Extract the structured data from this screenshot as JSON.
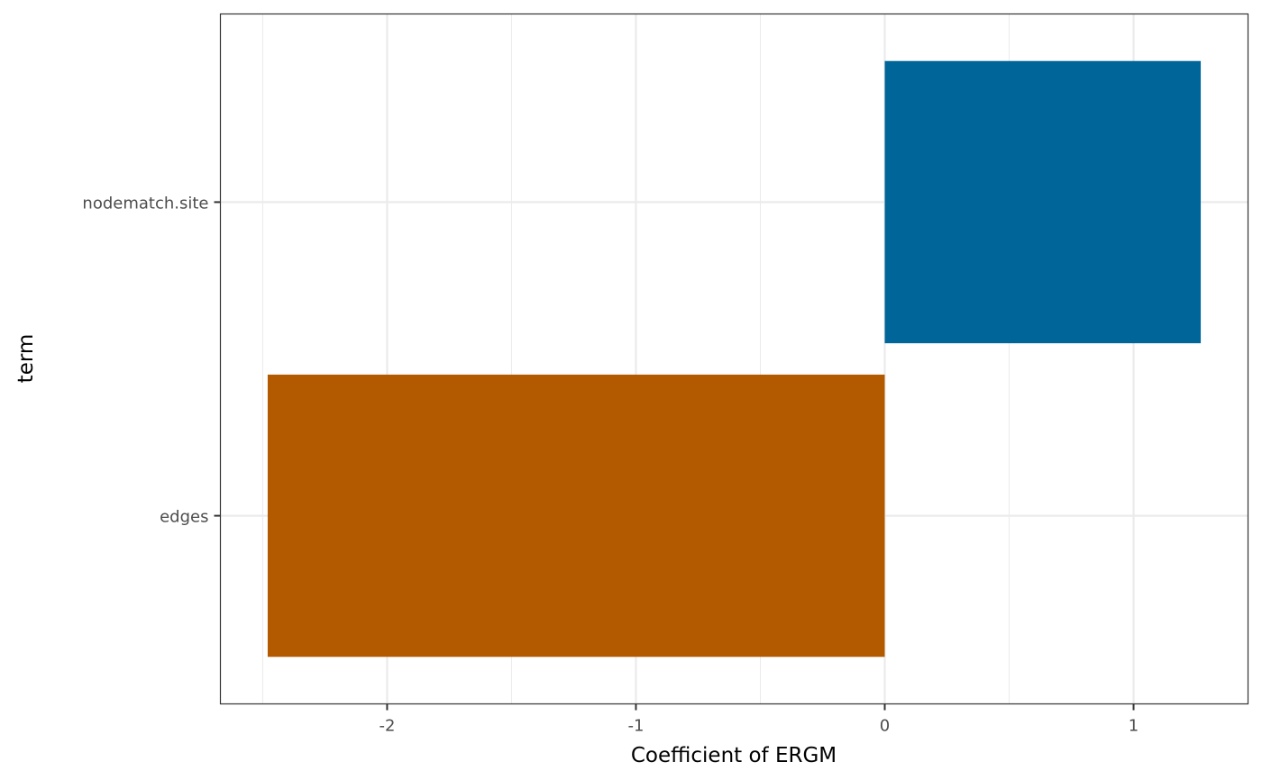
{
  "chart_data": {
    "type": "bar",
    "orientation": "horizontal",
    "categories": [
      "edges",
      "nodematch.site"
    ],
    "values": [
      -2.48,
      1.27
    ],
    "colors": [
      "#B35900",
      "#006699"
    ],
    "xlabel": "Coefficient of ERGM",
    "ylabel": "term",
    "xlim": [
      -2.67,
      1.46
    ],
    "xticks": [
      -2,
      -1,
      0,
      1
    ],
    "xtick_labels": [
      "-2",
      "-1",
      "0",
      "1"
    ],
    "grid": true,
    "theme": "bw"
  }
}
